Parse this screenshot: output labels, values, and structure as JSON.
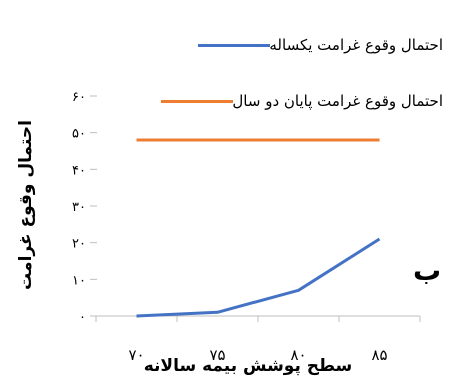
{
  "chart_data": {
    "type": "line",
    "x": [
      70,
      75,
      80,
      85
    ],
    "x_tick_labels": [
      "۷۰",
      "۷۵",
      "۸۰",
      "۸۵"
    ],
    "y_ticks": [
      0,
      10,
      20,
      30,
      40,
      50,
      60
    ],
    "y_tick_labels": [
      "۰",
      "۱۰",
      "۲۰",
      "۳۰",
      "۴۰",
      "۵۰",
      "۶۰"
    ],
    "ylim": [
      0,
      60
    ],
    "xlabel": "سطح پوشش بیمه سالانه",
    "ylabel": "احتمال وقوع غرامت",
    "panel_label": "ب",
    "legend_position": "top-right",
    "grid": false,
    "series": [
      {
        "name": "احتمال وقوع غرامت یکساله",
        "color": "#4472C4",
        "values": [
          0,
          1,
          7,
          21
        ]
      },
      {
        "name": "احتمال وقوع غرامت پایان دو سال",
        "color": "#ED7D31",
        "values": [
          48,
          48,
          48,
          48
        ]
      }
    ]
  }
}
